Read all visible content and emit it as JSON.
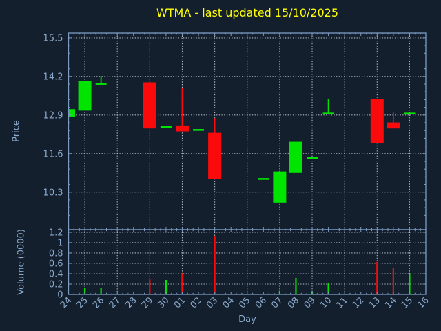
{
  "chart_data": {
    "type": "candlestick",
    "title": "WTMA - last updated 15/10/2025",
    "xlabel": "Day",
    "price_ylabel": "Price",
    "volume_ylabel": "Volume (0000)",
    "days": [
      "24",
      "25",
      "26",
      "27",
      "28",
      "29",
      "30",
      "01",
      "02",
      "03",
      "04",
      "05",
      "06",
      "07",
      "08",
      "09",
      "10",
      "11",
      "12",
      "13",
      "14",
      "15",
      "16"
    ],
    "price_ticks": [
      15.5,
      14.2,
      12.9,
      11.6,
      10.3
    ],
    "volume_ticks": [
      1.2,
      1,
      0.8,
      0.6,
      0.4,
      0.2,
      0
    ],
    "price_axis_range": [
      9.04,
      15.66
    ],
    "volume_axis_range": [
      0,
      1.253
    ],
    "grid": true,
    "legend": "none",
    "vertical_grid_days": [
      "25",
      "27",
      "29",
      "01",
      "03",
      "05",
      "07",
      "09",
      "11",
      "13",
      "15"
    ],
    "ohlcv": [
      {
        "day": "24",
        "open": 12.85,
        "high": 13.1,
        "low": 12.85,
        "close": 13.1,
        "volume": 0
      },
      {
        "day": "25",
        "open": 13.05,
        "high": 14.05,
        "low": 13.05,
        "close": 14.05,
        "volume": 0.12
      },
      {
        "day": "26",
        "open": 13.95,
        "high": 14.2,
        "low": 13.95,
        "close": 13.95,
        "volume": 0.12
      },
      {
        "day": "27",
        "open": null,
        "high": null,
        "low": null,
        "close": null,
        "volume": null
      },
      {
        "day": "28",
        "open": null,
        "high": null,
        "low": null,
        "close": null,
        "volume": null
      },
      {
        "day": "29",
        "open": 14.0,
        "high": 14.0,
        "low": 12.45,
        "close": 12.45,
        "volume": 0.29
      },
      {
        "day": "30",
        "open": 12.5,
        "high": 12.5,
        "low": 12.5,
        "close": 12.5,
        "volume": 0.28
      },
      {
        "day": "01",
        "open": 12.55,
        "high": 13.8,
        "low": 12.35,
        "close": 12.35,
        "volume": 0.41
      },
      {
        "day": "02",
        "open": 12.4,
        "high": 12.4,
        "low": 12.4,
        "close": 12.4,
        "volume": 0
      },
      {
        "day": "03",
        "open": 12.3,
        "high": 12.8,
        "low": 10.75,
        "close": 10.75,
        "volume": 1.13
      },
      {
        "day": "04",
        "open": null,
        "high": null,
        "low": null,
        "close": null,
        "volume": null
      },
      {
        "day": "05",
        "open": null,
        "high": null,
        "low": null,
        "close": null,
        "volume": null
      },
      {
        "day": "06",
        "open": 10.75,
        "high": 10.75,
        "low": 10.75,
        "close": 10.75,
        "volume": 0
      },
      {
        "day": "07",
        "open": 9.95,
        "high": 11.0,
        "low": 9.95,
        "close": 11.0,
        "volume": 0.07
      },
      {
        "day": "08",
        "open": 10.95,
        "high": 12.0,
        "low": 10.95,
        "close": 12.0,
        "volume": 0.32
      },
      {
        "day": "09",
        "open": 11.45,
        "high": 11.45,
        "low": 11.45,
        "close": 11.45,
        "volume": 0.04
      },
      {
        "day": "10",
        "open": 12.95,
        "high": 13.45,
        "low": 12.95,
        "close": 12.95,
        "volume": 0.22
      },
      {
        "day": "11",
        "open": null,
        "high": null,
        "low": null,
        "close": null,
        "volume": null
      },
      {
        "day": "12",
        "open": null,
        "high": null,
        "low": null,
        "close": null,
        "volume": null
      },
      {
        "day": "13",
        "open": 13.45,
        "high": 13.45,
        "low": 11.95,
        "close": 11.95,
        "volume": 0.63
      },
      {
        "day": "14",
        "open": 12.65,
        "high": 13.0,
        "low": 12.45,
        "close": 12.45,
        "volume": 0.52
      },
      {
        "day": "15",
        "open": 12.95,
        "high": 12.95,
        "low": 12.95,
        "close": 12.95,
        "volume": 0.4
      },
      {
        "day": "16",
        "open": null,
        "high": null,
        "low": null,
        "close": null,
        "volume": null
      }
    ],
    "colors": {
      "up": "#00e400",
      "down": "#fa0a0a",
      "background": "#141f2e",
      "axes": "#7d9cc4",
      "grid": "#c6cdd5",
      "labels": "#8aa9cb",
      "title": "#ffff00"
    }
  }
}
